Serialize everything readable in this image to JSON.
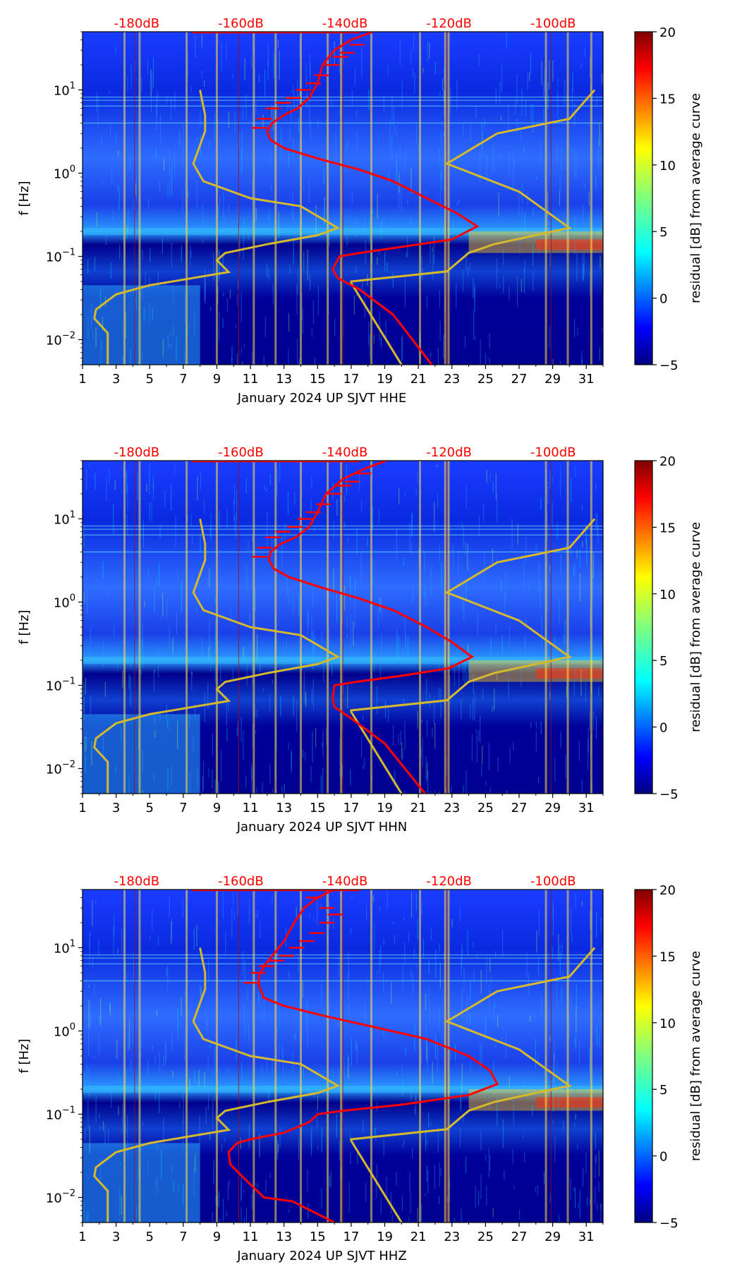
{
  "colors": {
    "ppsd_curve": "#ff0000",
    "noise_model": "#d4b82e",
    "db_label": "#ff0000",
    "colormap": "jet"
  },
  "chart_data": [
    {
      "type": "heatmap",
      "xlabel": "January 2024 UP SJVT  HHE",
      "ylabel": "f [Hz]",
      "x_range": [
        1,
        32
      ],
      "x_ticks": [
        "1",
        "3",
        "5",
        "7",
        "9",
        "11",
        "13",
        "15",
        "17",
        "19",
        "21",
        "23",
        "25",
        "27",
        "29",
        "31"
      ],
      "y_scale": "log",
      "y_range": [
        0.005,
        50
      ],
      "y_ticks": [
        {
          "value": 0.01,
          "base": "10",
          "exp": "−2"
        },
        {
          "value": 0.1,
          "base": "10",
          "exp": "−1"
        },
        {
          "value": 1,
          "base": "10",
          "exp": "0"
        },
        {
          "value": 10,
          "base": "10",
          "exp": "1"
        }
      ],
      "db_ticks": [
        {
          "x": 4.1,
          "label": "-180dB"
        },
        {
          "x": 10.3,
          "label": "-160dB"
        },
        {
          "x": 16.5,
          "label": "-140dB"
        },
        {
          "x": 22.7,
          "label": "-120dB"
        },
        {
          "x": 28.9,
          "label": "-100dB"
        }
      ],
      "colorbar": {
        "label": "residual [dB] from average curve",
        "min": -5,
        "max": 20,
        "ticks": [
          "−5",
          "0",
          "5",
          "10",
          "15",
          "20"
        ]
      },
      "curve": [
        [
          18.3,
          50
        ],
        [
          17.0,
          40
        ],
        [
          16.0,
          30
        ],
        [
          15.3,
          20
        ],
        [
          15.0,
          12
        ],
        [
          14.5,
          8
        ],
        [
          13.8,
          6
        ],
        [
          13.0,
          5
        ],
        [
          12.3,
          4
        ],
        [
          12.0,
          3.2
        ],
        [
          12.2,
          2.5
        ],
        [
          13.0,
          2.0
        ],
        [
          15.0,
          1.5
        ],
        [
          17.5,
          1.1
        ],
        [
          19.5,
          0.8
        ],
        [
          21.5,
          0.5
        ],
        [
          23.3,
          0.33
        ],
        [
          24.5,
          0.23
        ],
        [
          23.0,
          0.16
        ],
        [
          20.0,
          0.13
        ],
        [
          17.5,
          0.11
        ],
        [
          16.3,
          0.1
        ],
        [
          15.9,
          0.07
        ],
        [
          16.2,
          0.055
        ],
        [
          17.5,
          0.04
        ],
        [
          19.5,
          0.02
        ],
        [
          21.8,
          0.005
        ]
      ],
      "curve_spikes": [
        [
          12.0,
          3.5
        ],
        [
          12.3,
          4.5
        ],
        [
          12.8,
          6
        ],
        [
          13.4,
          7
        ],
        [
          14.0,
          8
        ],
        [
          14.6,
          10
        ],
        [
          15.2,
          12
        ],
        [
          15.7,
          15
        ],
        [
          16.3,
          20
        ],
        [
          16.8,
          25
        ],
        [
          17.2,
          28
        ],
        [
          17.8,
          35
        ]
      ],
      "model_low": [
        [
          8.0,
          10
        ],
        [
          8.3,
          5
        ],
        [
          8.3,
          3.2
        ],
        [
          7.6,
          1.3
        ],
        [
          8.2,
          0.8
        ],
        [
          11.0,
          0.5
        ],
        [
          14.0,
          0.4
        ],
        [
          16.2,
          0.22
        ],
        [
          15.0,
          0.18
        ],
        [
          12.0,
          0.14
        ],
        [
          9.5,
          0.11
        ],
        [
          9.0,
          0.09
        ],
        [
          9.7,
          0.065
        ],
        [
          5.0,
          0.045
        ],
        [
          3.0,
          0.035
        ],
        [
          1.8,
          0.023
        ],
        [
          1.7,
          0.018
        ],
        [
          2.5,
          0.012
        ],
        [
          2.5,
          0.005
        ]
      ],
      "model_high": [
        [
          31.5,
          10
        ],
        [
          30.0,
          4.5
        ],
        [
          25.7,
          3.0
        ],
        [
          22.7,
          1.3
        ],
        [
          27.0,
          0.6
        ],
        [
          30.0,
          0.22
        ],
        [
          25.5,
          0.14
        ],
        [
          24.0,
          0.11
        ],
        [
          22.7,
          0.066
        ],
        [
          17.0,
          0.05
        ],
        [
          17.0,
          0.048
        ],
        [
          20.0,
          0.005
        ]
      ],
      "spike_x": [
        3.5,
        4.4,
        7.2,
        9.0,
        11.2,
        12.5,
        14.0,
        15.6,
        16.4,
        18.2,
        21.1,
        22.6,
        22.8,
        28.6,
        29.9,
        31.3
      ]
    },
    {
      "type": "heatmap",
      "xlabel": "January 2024 UP SJVT  HHN",
      "ylabel": "f [Hz]",
      "x_range": [
        1,
        32
      ],
      "x_ticks": [
        "1",
        "3",
        "5",
        "7",
        "9",
        "11",
        "13",
        "15",
        "17",
        "19",
        "21",
        "23",
        "25",
        "27",
        "29",
        "31"
      ],
      "y_scale": "log",
      "y_range": [
        0.005,
        50
      ],
      "y_ticks": [
        {
          "value": 0.01,
          "base": "10",
          "exp": "−2"
        },
        {
          "value": 0.1,
          "base": "10",
          "exp": "−1"
        },
        {
          "value": 1,
          "base": "10",
          "exp": "0"
        },
        {
          "value": 10,
          "base": "10",
          "exp": "1"
        }
      ],
      "db_ticks": [
        {
          "x": 4.1,
          "label": "-180dB"
        },
        {
          "x": 10.3,
          "label": "-160dB"
        },
        {
          "x": 16.5,
          "label": "-140dB"
        },
        {
          "x": 22.7,
          "label": "-120dB"
        },
        {
          "x": 28.9,
          "label": "-100dB"
        }
      ],
      "colorbar": {
        "label": "residual [dB] from average curve",
        "min": -5,
        "max": 20,
        "ticks": [
          "−5",
          "0",
          "5",
          "10",
          "15",
          "20"
        ]
      },
      "curve": [
        [
          19.1,
          50
        ],
        [
          17.8,
          40
        ],
        [
          16.5,
          30
        ],
        [
          15.5,
          20
        ],
        [
          15.0,
          12
        ],
        [
          14.5,
          8
        ],
        [
          13.7,
          6
        ],
        [
          12.8,
          5
        ],
        [
          12.2,
          4
        ],
        [
          12.1,
          3.2
        ],
        [
          12.4,
          2.5
        ],
        [
          13.3,
          2.0
        ],
        [
          15.2,
          1.5
        ],
        [
          17.5,
          1.1
        ],
        [
          19.5,
          0.8
        ],
        [
          21.5,
          0.5
        ],
        [
          23.0,
          0.33
        ],
        [
          24.2,
          0.22
        ],
        [
          22.8,
          0.16
        ],
        [
          20.0,
          0.13
        ],
        [
          17.3,
          0.11
        ],
        [
          16.0,
          0.1
        ],
        [
          15.9,
          0.07
        ],
        [
          16.0,
          0.055
        ],
        [
          17.0,
          0.04
        ],
        [
          19.0,
          0.02
        ],
        [
          21.4,
          0.005
        ]
      ],
      "curve_spikes": [
        [
          12.0,
          3.5
        ],
        [
          12.3,
          4.5
        ],
        [
          12.8,
          6
        ],
        [
          13.4,
          7
        ],
        [
          14.1,
          8
        ],
        [
          14.7,
          10
        ],
        [
          15.2,
          12
        ],
        [
          15.8,
          15
        ],
        [
          16.4,
          20
        ],
        [
          17.0,
          25
        ],
        [
          17.5,
          28
        ],
        [
          18.2,
          35
        ]
      ],
      "model_low": [
        [
          8.0,
          10
        ],
        [
          8.3,
          5
        ],
        [
          8.3,
          3.2
        ],
        [
          7.6,
          1.3
        ],
        [
          8.2,
          0.8
        ],
        [
          11.0,
          0.5
        ],
        [
          14.0,
          0.4
        ],
        [
          16.2,
          0.22
        ],
        [
          15.0,
          0.18
        ],
        [
          12.0,
          0.14
        ],
        [
          9.5,
          0.11
        ],
        [
          9.0,
          0.09
        ],
        [
          9.7,
          0.065
        ],
        [
          5.0,
          0.045
        ],
        [
          3.0,
          0.035
        ],
        [
          1.8,
          0.023
        ],
        [
          1.7,
          0.018
        ],
        [
          2.5,
          0.012
        ],
        [
          2.5,
          0.005
        ]
      ],
      "model_high": [
        [
          31.5,
          10
        ],
        [
          30.0,
          4.5
        ],
        [
          25.7,
          3.0
        ],
        [
          22.7,
          1.3
        ],
        [
          27.0,
          0.6
        ],
        [
          30.0,
          0.22
        ],
        [
          25.5,
          0.14
        ],
        [
          24.0,
          0.11
        ],
        [
          22.7,
          0.066
        ],
        [
          17.0,
          0.05
        ],
        [
          17.0,
          0.048
        ],
        [
          20.0,
          0.005
        ]
      ],
      "spike_x": [
        3.5,
        4.4,
        7.2,
        9.0,
        11.2,
        12.5,
        14.0,
        15.6,
        16.4,
        18.2,
        21.1,
        22.6,
        22.8,
        28.6,
        29.9,
        31.3
      ]
    },
    {
      "type": "heatmap",
      "xlabel": "January 2024 UP SJVT  HHZ",
      "ylabel": "f [Hz]",
      "x_range": [
        1,
        32
      ],
      "x_ticks": [
        "1",
        "3",
        "5",
        "7",
        "9",
        "11",
        "13",
        "15",
        "17",
        "19",
        "21",
        "23",
        "25",
        "27",
        "29",
        "31"
      ],
      "y_scale": "log",
      "y_range": [
        0.005,
        50
      ],
      "y_ticks": [
        {
          "value": 0.01,
          "base": "10",
          "exp": "−2"
        },
        {
          "value": 0.1,
          "base": "10",
          "exp": "−1"
        },
        {
          "value": 1,
          "base": "10",
          "exp": "0"
        },
        {
          "value": 10,
          "base": "10",
          "exp": "1"
        }
      ],
      "db_ticks": [
        {
          "x": 4.1,
          "label": "-180dB"
        },
        {
          "x": 10.3,
          "label": "-160dB"
        },
        {
          "x": 16.5,
          "label": "-140dB"
        },
        {
          "x": 22.7,
          "label": "-120dB"
        },
        {
          "x": 28.9,
          "label": "-100dB"
        }
      ],
      "colorbar": {
        "label": "residual [dB] from average curve",
        "min": -5,
        "max": 20,
        "ticks": [
          "−5",
          "0",
          "5",
          "10",
          "15",
          "20"
        ]
      },
      "curve": [
        [
          16.0,
          50
        ],
        [
          15.0,
          40
        ],
        [
          14.2,
          30
        ],
        [
          13.6,
          20
        ],
        [
          13.0,
          12
        ],
        [
          12.3,
          8
        ],
        [
          11.8,
          6
        ],
        [
          11.5,
          4.5
        ],
        [
          11.5,
          3.5
        ],
        [
          11.8,
          2.5
        ],
        [
          13.0,
          2.0
        ],
        [
          15.5,
          1.5
        ],
        [
          18.5,
          1.1
        ],
        [
          21.5,
          0.8
        ],
        [
          24.0,
          0.5
        ],
        [
          25.3,
          0.33
        ],
        [
          25.7,
          0.23
        ],
        [
          24.0,
          0.17
        ],
        [
          20.0,
          0.13
        ],
        [
          16.5,
          0.11
        ],
        [
          15.0,
          0.1
        ],
        [
          14.5,
          0.08
        ],
        [
          13.0,
          0.06
        ],
        [
          11.0,
          0.05
        ],
        [
          10.2,
          0.045
        ],
        [
          9.7,
          0.035
        ],
        [
          9.8,
          0.025
        ],
        [
          10.5,
          0.018
        ],
        [
          11.8,
          0.01
        ],
        [
          13.5,
          0.009
        ],
        [
          16.0,
          0.005
        ]
      ],
      "curve_spikes": [
        [
          11.5,
          3.8
        ],
        [
          11.9,
          5
        ],
        [
          12.4,
          6
        ],
        [
          13.0,
          7
        ],
        [
          13.6,
          8
        ],
        [
          14.2,
          10
        ],
        [
          14.8,
          12
        ],
        [
          15.4,
          15
        ],
        [
          16.0,
          20
        ],
        [
          16.5,
          25
        ],
        [
          16.0,
          30
        ],
        [
          15.2,
          40
        ]
      ],
      "model_low": [
        [
          8.0,
          10
        ],
        [
          8.3,
          5
        ],
        [
          8.3,
          3.2
        ],
        [
          7.6,
          1.3
        ],
        [
          8.2,
          0.8
        ],
        [
          11.0,
          0.5
        ],
        [
          14.0,
          0.4
        ],
        [
          16.2,
          0.22
        ],
        [
          15.0,
          0.18
        ],
        [
          12.0,
          0.14
        ],
        [
          9.5,
          0.11
        ],
        [
          9.0,
          0.09
        ],
        [
          9.7,
          0.065
        ],
        [
          5.0,
          0.045
        ],
        [
          3.0,
          0.035
        ],
        [
          1.8,
          0.023
        ],
        [
          1.7,
          0.018
        ],
        [
          2.5,
          0.012
        ],
        [
          2.5,
          0.005
        ]
      ],
      "model_high": [
        [
          31.5,
          10
        ],
        [
          30.0,
          4.5
        ],
        [
          25.7,
          3.0
        ],
        [
          22.7,
          1.3
        ],
        [
          27.0,
          0.6
        ],
        [
          30.0,
          0.22
        ],
        [
          25.5,
          0.14
        ],
        [
          24.0,
          0.11
        ],
        [
          22.7,
          0.066
        ],
        [
          17.0,
          0.05
        ],
        [
          17.0,
          0.048
        ],
        [
          20.0,
          0.005
        ]
      ],
      "spike_x": [
        3.5,
        4.4,
        7.2,
        9.0,
        11.2,
        12.5,
        14.0,
        15.6,
        16.4,
        18.2,
        21.1,
        22.6,
        22.8,
        28.6,
        29.9,
        31.3
      ]
    }
  ]
}
